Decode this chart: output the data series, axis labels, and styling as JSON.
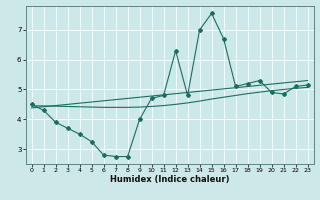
{
  "xlabel": "Humidex (Indice chaleur)",
  "background_color": "#cce8e8",
  "grid_color": "#ffffff",
  "line_color": "#1a6e60",
  "x_data": [
    0,
    1,
    2,
    3,
    4,
    5,
    6,
    7,
    8,
    9,
    10,
    11,
    12,
    13,
    14,
    15,
    16,
    17,
    18,
    19,
    20,
    21,
    22,
    23
  ],
  "y_main": [
    4.5,
    4.3,
    3.9,
    3.7,
    3.5,
    3.25,
    2.8,
    2.75,
    2.75,
    4.0,
    4.7,
    4.8,
    6.3,
    4.8,
    7.0,
    7.55,
    6.7,
    5.1,
    5.2,
    5.3,
    4.9,
    4.85,
    5.1,
    5.15
  ],
  "y_trend1": [
    4.38,
    4.42,
    4.46,
    4.5,
    4.54,
    4.58,
    4.62,
    4.66,
    4.7,
    4.74,
    4.78,
    4.82,
    4.86,
    4.9,
    4.94,
    4.98,
    5.02,
    5.06,
    5.1,
    5.14,
    5.18,
    5.22,
    5.26,
    5.3
  ],
  "y_trend2": [
    4.45,
    4.45,
    4.44,
    4.43,
    4.42,
    4.41,
    4.4,
    4.4,
    4.4,
    4.41,
    4.43,
    4.46,
    4.5,
    4.55,
    4.61,
    4.68,
    4.74,
    4.8,
    4.86,
    4.91,
    4.96,
    5.0,
    5.04,
    5.07
  ],
  "xlim": [
    -0.5,
    23.5
  ],
  "ylim": [
    2.5,
    7.8
  ],
  "yticks": [
    3,
    4,
    5,
    6,
    7
  ],
  "xticks": [
    0,
    1,
    2,
    3,
    4,
    5,
    6,
    7,
    8,
    9,
    10,
    11,
    12,
    13,
    14,
    15,
    16,
    17,
    18,
    19,
    20,
    21,
    22,
    23
  ]
}
